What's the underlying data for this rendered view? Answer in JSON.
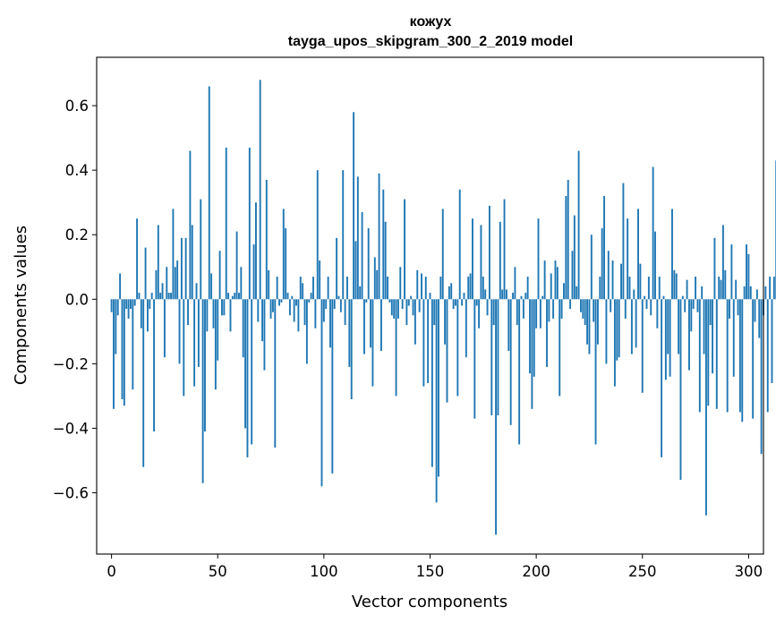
{
  "chart_data": {
    "type": "bar",
    "title": "кожух",
    "subtitle": "tayga_upos_skipgram_300_2_2019 model",
    "xlabel": "Vector components",
    "ylabel": "Components values",
    "xlim": [
      -7,
      307
    ],
    "ylim": [
      -0.79,
      0.75
    ],
    "xticks": [
      0,
      50,
      100,
      150,
      200,
      250,
      300
    ],
    "xtick_labels": [
      "0",
      "50",
      "100",
      "150",
      "200",
      "250",
      "300"
    ],
    "yticks": [
      0.6,
      0.4,
      0.2,
      0.0,
      -0.2,
      -0.4,
      -0.6
    ],
    "ytick_labels": [
      "0.6",
      "0.4",
      "0.2",
      "0.0",
      "−0.2",
      "−0.4",
      "−0.6"
    ],
    "bar_color": "#1f77b4",
    "values": [
      -0.04,
      -0.34,
      -0.17,
      -0.05,
      0.08,
      -0.31,
      -0.33,
      -0.03,
      -0.06,
      -0.03,
      -0.28,
      -0.02,
      0.25,
      0.02,
      -0.09,
      -0.52,
      0.16,
      -0.1,
      -0.03,
      0.02,
      -0.41,
      0.09,
      0.23,
      0.02,
      0.05,
      -0.18,
      0.1,
      0.02,
      0.02,
      0.28,
      0.1,
      0.12,
      -0.2,
      0.19,
      -0.3,
      0.19,
      -0.08,
      0.46,
      0.23,
      -0.27,
      0.05,
      -0.21,
      0.31,
      -0.57,
      -0.41,
      -0.1,
      0.66,
      0.08,
      -0.09,
      -0.28,
      -0.19,
      0.15,
      -0.05,
      -0.05,
      0.47,
      0.02,
      -0.1,
      0.01,
      0.02,
      0.21,
      0.02,
      0.1,
      -0.18,
      -0.4,
      -0.49,
      0.47,
      -0.45,
      0.17,
      0.3,
      -0.07,
      0.68,
      -0.13,
      -0.22,
      0.37,
      0.09,
      -0.06,
      -0.04,
      -0.46,
      0.07,
      -0.02,
      -0.01,
      0.28,
      0.22,
      0.02,
      -0.05,
      0.01,
      -0.07,
      -0.02,
      -0.1,
      0.07,
      0.05,
      -0.08,
      -0.2,
      -0.01,
      0.02,
      0.07,
      -0.09,
      0.4,
      0.12,
      -0.58,
      -0.07,
      -0.03,
      0.07,
      -0.15,
      -0.54,
      -0.03,
      0.19,
      0.01,
      -0.04,
      0.4,
      -0.08,
      0.07,
      -0.21,
      -0.31,
      0.58,
      0.18,
      0.38,
      0.04,
      0.27,
      -0.17,
      -0.01,
      0.22,
      -0.15,
      -0.27,
      0.13,
      0.09,
      0.39,
      -0.16,
      0.34,
      0.24,
      0.07,
      -0.01,
      -0.05,
      -0.06,
      -0.3,
      -0.06,
      0.1,
      -0.03,
      0.31,
      -0.08,
      -0.02,
      0.01,
      -0.05,
      -0.14,
      0.09,
      -0.04,
      0.08,
      -0.27,
      0.07,
      -0.26,
      0.02,
      -0.52,
      -0.08,
      -0.63,
      -0.55,
      0.07,
      0.28,
      -0.14,
      -0.32,
      0.04,
      0.05,
      -0.03,
      -0.02,
      -0.3,
      0.34,
      -0.02,
      0.02,
      -0.18,
      0.07,
      0.08,
      0.25,
      -0.37,
      -0.02,
      -0.09,
      0.23,
      0.07,
      0.03,
      -0.05,
      0.29,
      -0.36,
      -0.08,
      -0.73,
      -0.36,
      0.24,
      0.03,
      0.31,
      0.03,
      -0.16,
      -0.39,
      0.02,
      0.1,
      -0.08,
      -0.45,
      0.01,
      -0.06,
      0.02,
      0.07,
      -0.23,
      -0.34,
      -0.24,
      -0.09,
      0.25,
      -0.09,
      0.01,
      0.12,
      -0.21,
      -0.07,
      0.08,
      -0.06,
      0.12,
      0.1,
      -0.3,
      -0.06,
      0.05,
      0.32,
      0.37,
      -0.03,
      0.15,
      0.26,
      0.04,
      0.46,
      -0.04,
      -0.06,
      -0.08,
      -0.14,
      -0.17,
      0.2,
      -0.07,
      -0.45,
      -0.14,
      0.07,
      0.22,
      0.32,
      -0.2,
      0.15,
      -0.04,
      0.12,
      -0.27,
      -0.19,
      -0.18,
      0.11,
      0.36,
      -0.06,
      0.25,
      0.07,
      -0.17,
      0.03,
      -0.15,
      0.28,
      0.11,
      -0.29,
      0.01,
      -0.03,
      0.07,
      -0.05,
      0.41,
      0.21,
      -0.09,
      0.07,
      -0.49,
      0.01,
      -0.25,
      -0.17,
      -0.24,
      0.28,
      0.09,
      0.08,
      -0.17,
      -0.56,
      0.01,
      -0.04,
      0.06,
      -0.22,
      -0.1,
      -0.03,
      0.07,
      -0.04,
      -0.35,
      0.04,
      -0.17,
      -0.67,
      -0.33,
      -0.08,
      -0.23,
      0.19,
      -0.34,
      0.07,
      0.06,
      0.23,
      0.09,
      -0.35,
      -0.06,
      0.17,
      -0.24,
      0.06,
      -0.05,
      -0.35,
      -0.38,
      0.04,
      0.17,
      0.14,
      0.04,
      -0.37,
      -0.07,
      0.03,
      -0.12,
      -0.48,
      -0.05,
      0.04,
      -0.35,
      0.07,
      -0.26,
      0.07,
      0.43,
      -0.16
    ]
  }
}
